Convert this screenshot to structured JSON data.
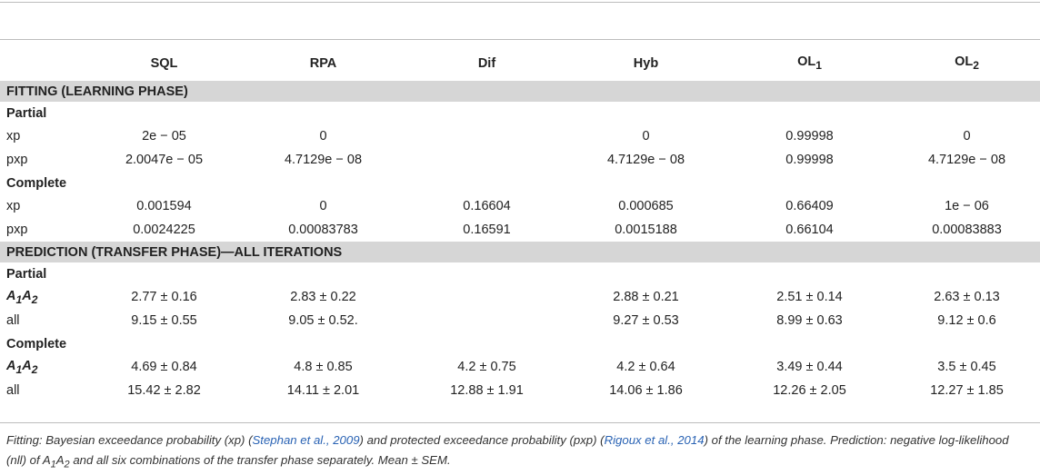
{
  "header": {
    "columns": [
      "",
      "SQL",
      "RPA",
      "Dif",
      "Hyb",
      "OL",
      "OL"
    ],
    "column_subscripts": [
      "",
      "",
      "",
      "",
      "",
      "1",
      "2"
    ]
  },
  "sections": [
    {
      "title": "FITTING (LEARNING PHASE)",
      "groups": [
        {
          "name": "Partial",
          "rows": [
            {
              "label": "xp",
              "values": [
                "2e − 05",
                "0",
                "",
                "0",
                "0.99998",
                "0"
              ]
            },
            {
              "label": "pxp",
              "values": [
                "2.0047e − 05",
                "4.7129e − 08",
                "",
                "4.7129e − 08",
                "0.99998",
                "4.7129e − 08"
              ]
            }
          ]
        },
        {
          "name": "Complete",
          "rows": [
            {
              "label": "xp",
              "values": [
                "0.001594",
                "0",
                "0.16604",
                "0.000685",
                "0.66409",
                "1e − 06"
              ]
            },
            {
              "label": "pxp",
              "values": [
                "0.0024225",
                "0.00083783",
                "0.16591",
                "0.0015188",
                "0.66104",
                "0.00083883"
              ]
            }
          ]
        }
      ]
    },
    {
      "title": "PREDICTION (TRANSFER PHASE)—ALL ITERATIONS",
      "groups": [
        {
          "name": "Partial",
          "rows": [
            {
              "label": "A",
              "label_sub1": "1",
              "label_mid": "A",
              "label_sub2": "2",
              "values": [
                "2.77 ± 0.16",
                "2.83 ± 0.22",
                "",
                "2.88 ± 0.21",
                "2.51 ± 0.14",
                "2.63 ± 0.13"
              ]
            },
            {
              "label": "all",
              "values": [
                "9.15 ± 0.55",
                "9.05 ± 0.52.",
                "",
                "9.27 ± 0.53",
                "8.99 ± 0.63",
                "9.12 ± 0.6"
              ]
            }
          ]
        },
        {
          "name": "Complete",
          "rows": [
            {
              "label": "A",
              "label_sub1": "1",
              "label_mid": "A",
              "label_sub2": "2",
              "values": [
                "4.69 ± 0.84",
                "4.8 ± 0.85",
                "4.2 ± 0.75",
                "4.2 ± 0.64",
                "3.49 ± 0.44",
                "3.5 ± 0.45"
              ]
            },
            {
              "label": "all",
              "values": [
                "15.42 ± 2.82",
                "14.11 ± 2.01",
                "12.88 ± 1.91",
                "14.06 ± 1.86",
                "12.26 ± 2.05",
                "12.27 ± 1.85"
              ]
            }
          ]
        }
      ]
    }
  ],
  "caption": {
    "p1": "Fitting: Bayesian exceedance probability (xp) (",
    "cite1": "Stephan et al., 2009",
    "p2": ") and protected exceedance probability (pxp) (",
    "cite2": "Rigoux et al., 2014",
    "p3": ") of the learning phase. Prediction: negative log-likelihood (nll) of A",
    "p3_sub1": "1",
    "p3_mid": "A",
    "p3_sub2": "2",
    "p4": " and all six combinations of the transfer phase separately. Mean ± SEM."
  }
}
